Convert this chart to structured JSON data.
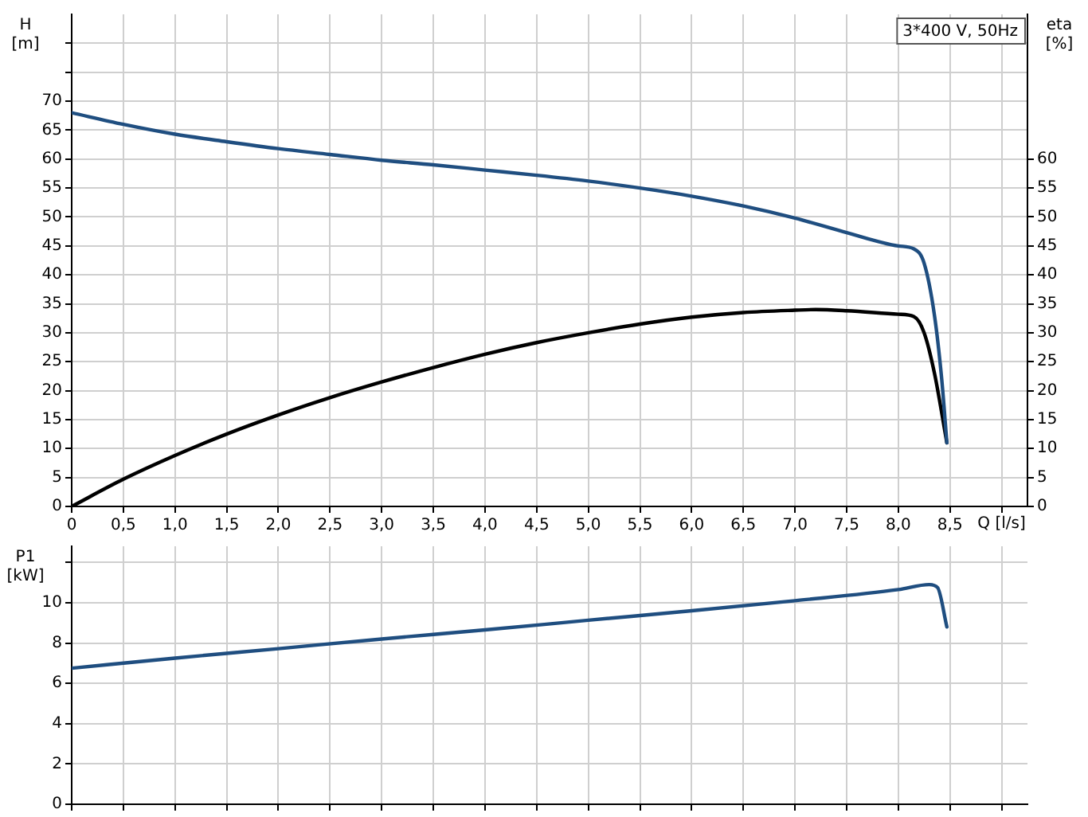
{
  "chart_data": [
    {
      "type": "line",
      "ylabel": "H [m]",
      "y2label": "eta [%]",
      "xlabel": "Q [l/s]",
      "annotations": [
        "3*400 V, 50Hz"
      ],
      "xlim": [
        0,
        9.25
      ],
      "xticks": [
        {
          "value": 0,
          "label": "0"
        },
        {
          "value": 0.5,
          "label": "0,5"
        },
        {
          "value": 1,
          "label": "1,0"
        },
        {
          "value": 1.5,
          "label": "1,5"
        },
        {
          "value": 2,
          "label": "2,0"
        },
        {
          "value": 2.5,
          "label": "2,5"
        },
        {
          "value": 3,
          "label": "3,0"
        },
        {
          "value": 3.5,
          "label": "3,5"
        },
        {
          "value": 4,
          "label": "4,0"
        },
        {
          "value": 4.5,
          "label": "4,5"
        },
        {
          "value": 5,
          "label": "5,0"
        },
        {
          "value": 5.5,
          "label": "5,5"
        },
        {
          "value": 6,
          "label": "6,0"
        },
        {
          "value": 6.5,
          "label": "6,5"
        },
        {
          "value": 7,
          "label": "7,0"
        },
        {
          "value": 7.5,
          "label": "7,5"
        },
        {
          "value": 8,
          "label": "8,0"
        },
        {
          "value": 8.5,
          "label": "8,5"
        },
        {
          "value": 9,
          "label": null
        }
      ],
      "ylim": [
        0,
        85
      ],
      "yticks": [
        0,
        5,
        10,
        15,
        20,
        25,
        30,
        35,
        40,
        45,
        50,
        55,
        60,
        65,
        70,
        {
          "value": 75,
          "label": null
        },
        {
          "value": 80,
          "label": null
        }
      ],
      "y2lim": [
        0,
        85
      ],
      "y2ticks": [
        0,
        5,
        10,
        15,
        20,
        25,
        30,
        35,
        40,
        45,
        50,
        55,
        60
      ],
      "grid": true,
      "legend": false,
      "marker": "none",
      "line_style": "solid",
      "series": [
        {
          "color": "#1f4e80",
          "x": [
            0,
            0.5,
            1,
            1.5,
            2,
            2.5,
            3,
            3.5,
            4,
            4.5,
            5,
            5.5,
            6,
            6.5,
            7,
            7.5,
            8,
            8.15,
            8.25,
            8.35,
            8.42,
            8.47
          ],
          "values": [
            68,
            66,
            64.3,
            63,
            61.8,
            60.8,
            59.8,
            59,
            58.1,
            57.2,
            56.2,
            55,
            53.6,
            51.9,
            49.8,
            47.3,
            45,
            44.5,
            42,
            33,
            22,
            11
          ]
        },
        {
          "color": "#000000",
          "axis": "y2",
          "x": [
            0,
            0.5,
            1,
            1.5,
            2,
            2.5,
            3,
            3.5,
            4,
            4.5,
            5,
            5.5,
            6,
            6.5,
            7,
            7.2,
            7.5,
            8,
            8.15,
            8.25,
            8.35,
            8.47
          ],
          "values": [
            0,
            4.7,
            8.8,
            12.5,
            15.8,
            18.8,
            21.5,
            24,
            26.3,
            28.3,
            30,
            31.5,
            32.7,
            33.5,
            33.9,
            34,
            33.8,
            33.2,
            32.8,
            30,
            23,
            11
          ]
        }
      ]
    },
    {
      "type": "line",
      "ylabel": "P1 [kW]",
      "xlim": [
        0,
        9.25
      ],
      "xticks": [
        0,
        0.5,
        1,
        1.5,
        2,
        2.5,
        3,
        3.5,
        4,
        4.5,
        5,
        5.5,
        6,
        6.5,
        7,
        7.5,
        8,
        8.5,
        9
      ],
      "ylim": [
        0,
        12.8
      ],
      "yticks": [
        0,
        2,
        4,
        6,
        8,
        10,
        {
          "value": 12,
          "label": null
        }
      ],
      "tick_labels": "y",
      "grid": true,
      "legend": false,
      "marker": "none",
      "line_style": "solid",
      "series": [
        {
          "color": "#1f4e80",
          "x": [
            0,
            1,
            2,
            3,
            4,
            5,
            6,
            7,
            8,
            8.3,
            8.38,
            8.47
          ],
          "values": [
            6.75,
            7.25,
            7.72,
            8.2,
            8.65,
            9.13,
            9.6,
            10.1,
            10.65,
            10.9,
            10.75,
            8.8
          ]
        }
      ]
    }
  ]
}
